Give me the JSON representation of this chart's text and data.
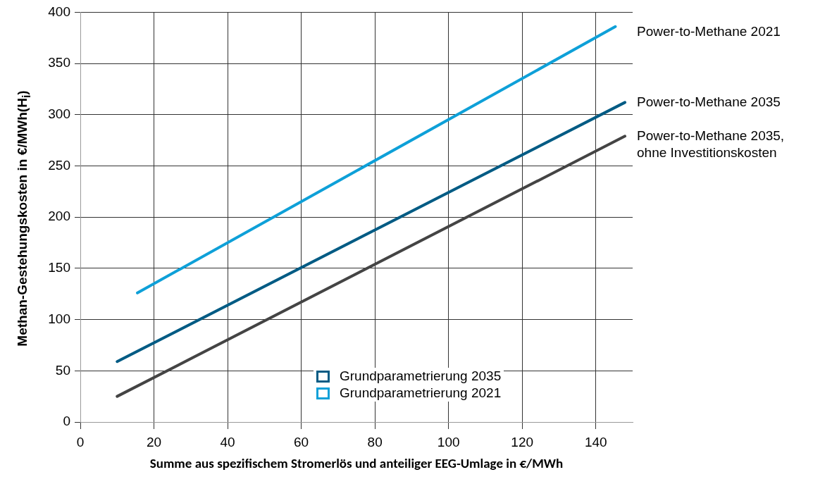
{
  "chart_data": {
    "type": "line",
    "xlabel": "Summe aus spezifischem Stromerlös und anteiliger EEG-Umlage in €/MWh",
    "ylabel": "Methan-Gestehungskosten in €/MWh(H$_{i}$)",
    "xlim": [
      0,
      150
    ],
    "xticks": [
      0,
      20,
      40,
      60,
      80,
      100,
      120,
      140
    ],
    "ylim": [
      0,
      400
    ],
    "yticks": [
      0,
      50,
      100,
      150,
      200,
      250,
      300,
      350,
      400
    ],
    "grid": true,
    "legend": "bottom",
    "marker": "none",
    "line_style": "solid",
    "series": [
      {
        "name": "Power-to-Methane 2021",
        "color": "#0ea0d8",
        "x": [
          15.5,
          145.3
        ],
        "values": [
          126,
          386
        ]
      },
      {
        "name": "Power-to-Methane 2035",
        "color": "#005b84",
        "x": [
          10,
          147.9
        ],
        "values": [
          59,
          312
        ]
      },
      {
        "name": "Power-to-Methane 2035, ohne Investitionskosten",
        "color": "#444444",
        "x": [
          10,
          147.9
        ],
        "values": [
          25,
          279
        ]
      },
      {
        "name": "Grundparametrierung 2035",
        "type": "scatter",
        "marker": "square",
        "color": "#005b84"
      },
      {
        "name": "Grundparametrierung 2021",
        "type": "scatter",
        "marker": "square",
        "color": "#0ea0d8"
      }
    ]
  }
}
